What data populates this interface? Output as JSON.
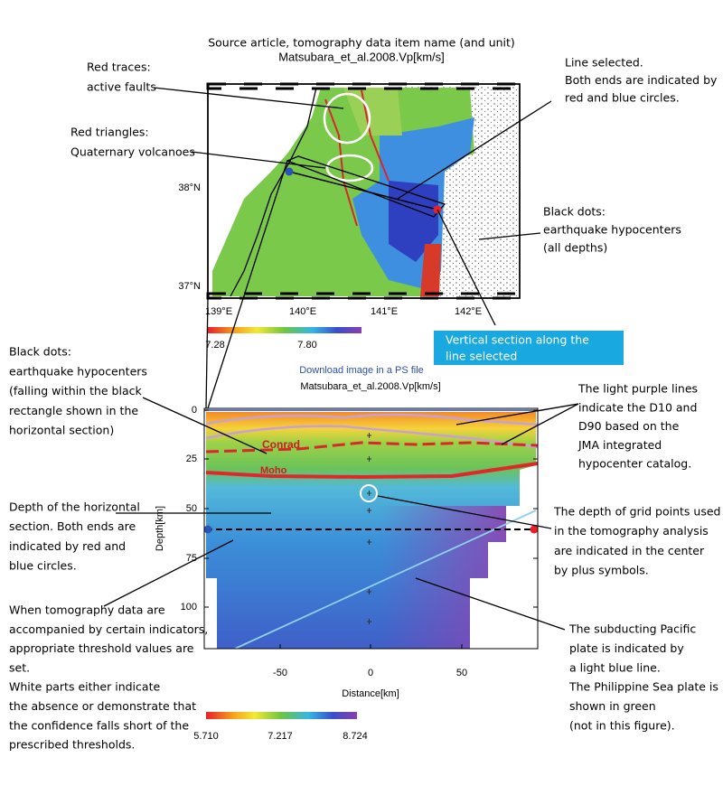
{
  "header": {
    "caption": "Source article, tomography data item name (and unit)"
  },
  "map": {
    "title": "Matsubara_et_al.2008.Vp[km/s]",
    "lat_labels": [
      "38°N",
      "37°N"
    ],
    "lon_labels": [
      "139°E",
      "140°E",
      "141°E",
      "142°E"
    ],
    "colorbar_labels": [
      "7.28",
      "7.80"
    ]
  },
  "callout": {
    "lines": [
      "Vertical section along the",
      "line selected"
    ]
  },
  "download_link": "Download image in a PS file",
  "section": {
    "title": "Matsubara_et_al.2008.Vp[km/s]",
    "y_label": "Depth[km]",
    "x_label": "Distance[km]",
    "yticks": [
      "0",
      "25",
      "50",
      "75",
      "100"
    ],
    "xticks": [
      "-50",
      "0",
      "50"
    ],
    "conrad": "Conrad",
    "moho": "Moho",
    "colorbar_labels": [
      "5.710",
      "7.217",
      "8.724"
    ]
  },
  "annotations": [
    {
      "lines": [
        "Red traces:",
        "active faults"
      ]
    },
    {
      "lines": [
        "Red triangles:",
        "Quaternary volcanoes"
      ]
    },
    {
      "lines": [
        "Line selected.",
        "Both ends are indicated by",
        "red and blue circles."
      ]
    },
    {
      "lines": [
        "Black dots:",
        "earthquake hypocenters",
        "(all depths)"
      ]
    },
    {
      "lines": [
        "Black dots:",
        "earthquake hypocenters",
        "(falling within the black",
        "rectangle shown in the",
        "horizontal section)"
      ]
    },
    {
      "lines": [
        "The light purple lines",
        "indicate the D10 and",
        "D90 based on the",
        "JMA integrated",
        "hypocenter catalog."
      ]
    },
    {
      "lines": [
        "Depth of the horizontal",
        "section. Both ends are",
        "indicated by red and",
        "blue circles."
      ]
    },
    {
      "lines": [
        "The depth of grid points used",
        "in the tomography analysis",
        "are indicated in the center",
        "by plus symbols."
      ]
    },
    {
      "lines": [
        "When tomography data are",
        "accompanied by certain indicators,",
        "appropriate threshold values are",
        "set.",
        "White parts either indicate",
        "the absence or demonstrate that",
        "the confidence falls short of the",
        "prescribed thresholds."
      ]
    },
    {
      "lines": [
        "The subducting Pacific",
        "plate is indicated by",
        "a light blue line.",
        "The Philippine Sea plate is",
        "shown in green",
        "(not in this figure)."
      ]
    }
  ]
}
